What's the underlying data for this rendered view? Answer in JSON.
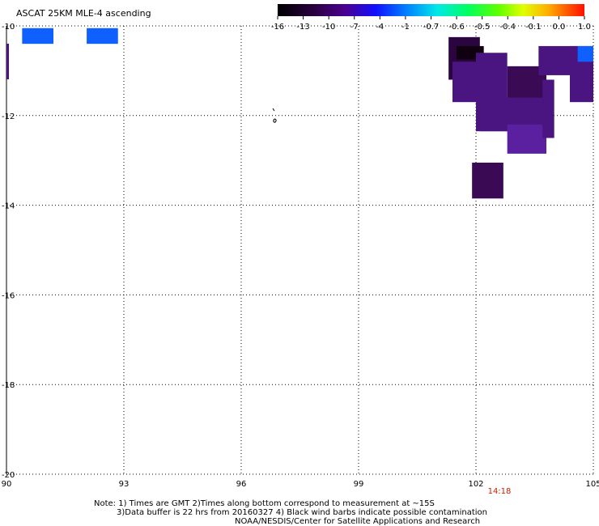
{
  "title": "ASCAT 25KM MLE-4 ascending",
  "colorbar": {
    "tick_labels": [
      "-16",
      "-13",
      "-10",
      "-7",
      "-4",
      "-1",
      "-0.7",
      "-0.6",
      "-0.5",
      "-0.4",
      "-0.1",
      "0.0",
      "1.0"
    ]
  },
  "map": {
    "lon_labels": [
      "90",
      "93",
      "96",
      "99",
      "102",
      "105"
    ],
    "lat_labels": [
      "-10",
      "-12",
      "-14",
      "-16",
      "-18",
      "-20"
    ],
    "lon_range": [
      90,
      105
    ],
    "lat_range": [
      -20,
      -10
    ],
    "grid": true,
    "time_label": "14:18",
    "time_lon": 102.6,
    "cell_colors": {
      "deep": "#3a0a55",
      "dark": "#2a0540",
      "mid": "#4a1580",
      "light": "#5a20a0",
      "blue": "#1060ff",
      "black": "#100010"
    }
  },
  "notes": {
    "line1": "Note: 1) Times are GMT 2)Times along bottom correspond to measurement at ~15S",
    "line2": "3)Data buffer is 22 hrs from 20160327 4) Black wind barbs indicate possible contamination",
    "line3": "NOAA/NESDIS/Center for Satellite Applications and Research"
  }
}
